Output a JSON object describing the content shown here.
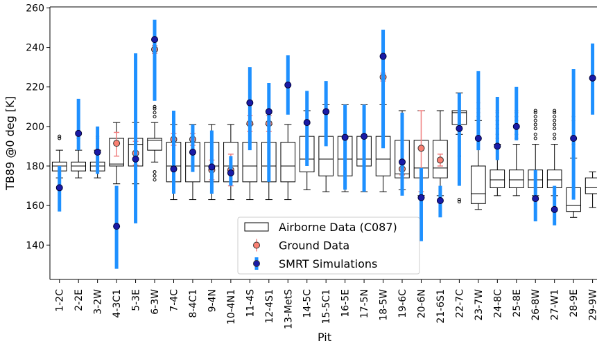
{
  "chart_data": {
    "type": "box",
    "ylabel": "TB89 @0 deg [K]",
    "xlabel": "Pit",
    "categories": [
      "1-2C",
      "2-2E",
      "3-2W",
      "4-3C1",
      "5-3E",
      "6-3W",
      "7-4C",
      "8-4C1",
      "9-4N",
      "10-4N1",
      "11-4S",
      "12-4S1",
      "13-MetS",
      "14-5C",
      "15-5C1",
      "16-5E",
      "17-5N",
      "18-5W",
      "19-6C",
      "20-6N",
      "21-6S1",
      "22-7C",
      "23-7W",
      "24-8C",
      "25-8E",
      "26-8W",
      "27-W1",
      "28-9E",
      "29-9W"
    ],
    "ylim": [
      122.6,
      260.5
    ],
    "yticks": [
      140,
      160,
      180,
      200,
      220,
      240,
      260
    ],
    "legend": "lower center",
    "series": [
      {
        "name": "Airborne Data (C087)",
        "type": "box",
        "color": "#000000",
        "boxes": [
          {
            "whislo": 174,
            "q1": 177.5,
            "med": 180,
            "q3": 182,
            "whishi": 188,
            "fliers": [
              194,
              195
            ]
          },
          {
            "whislo": 174,
            "q1": 177.5,
            "med": 180,
            "q3": 182,
            "whishi": 188,
            "fliers": [
              194,
              195
            ]
          },
          {
            "whislo": 174,
            "q1": 177.5,
            "med": 180,
            "q3": 182,
            "whishi": 188,
            "fliers": [
              194,
              195
            ]
          },
          {
            "whislo": 171,
            "q1": 180,
            "med": 181,
            "q3": 194,
            "whishi": 202,
            "fliers": []
          },
          {
            "whislo": 171,
            "q1": 180,
            "med": 191,
            "q3": 194,
            "whishi": 202,
            "fliers": []
          },
          {
            "whislo": 182,
            "q1": 188,
            "med": 193,
            "q3": 194,
            "whishi": 202,
            "fliers": [
              173,
              175,
              177,
              205,
              207,
              209,
              210
            ]
          },
          {
            "whislo": 163,
            "q1": 172,
            "med": 180,
            "q3": 192,
            "whishi": 201,
            "fliers": []
          },
          {
            "whislo": 163,
            "q1": 172,
            "med": 180,
            "q3": 192,
            "whishi": 201,
            "fliers": []
          },
          {
            "whislo": 163,
            "q1": 172,
            "med": 180,
            "q3": 192,
            "whishi": 201,
            "fliers": []
          },
          {
            "whislo": 163,
            "q1": 172,
            "med": 180,
            "q3": 192,
            "whishi": 201,
            "fliers": []
          },
          {
            "whislo": 163,
            "q1": 172,
            "med": 180,
            "q3": 192,
            "whishi": 201,
            "fliers": []
          },
          {
            "whislo": 163,
            "q1": 172,
            "med": 180,
            "q3": 192,
            "whishi": 201,
            "fliers": []
          },
          {
            "whislo": 163,
            "q1": 172,
            "med": 180,
            "q3": 192,
            "whishi": 201,
            "fliers": []
          },
          {
            "whislo": 168,
            "q1": 177,
            "med": 183.5,
            "q3": 195,
            "whishi": 208,
            "fliers": []
          },
          {
            "whislo": 167,
            "q1": 175,
            "med": 183.5,
            "q3": 195,
            "whishi": 211,
            "fliers": []
          },
          {
            "whislo": 167,
            "q1": 175,
            "med": 183.5,
            "q3": 195,
            "whishi": 211,
            "fliers": []
          },
          {
            "whislo": 167,
            "q1": 180,
            "med": 183.5,
            "q3": 195,
            "whishi": 211,
            "fliers": []
          },
          {
            "whislo": 167,
            "q1": 175,
            "med": 183.5,
            "q3": 195,
            "whishi": 211,
            "fliers": []
          },
          {
            "whislo": 168,
            "q1": 174,
            "med": 176,
            "q3": 193,
            "whishi": 208,
            "fliers": []
          },
          {
            "whislo": 165,
            "q1": 174,
            "med": 179,
            "q3": 193,
            "whishi": 208,
            "fliers": []
          },
          {
            "whislo": 165,
            "q1": 174,
            "med": 179,
            "q3": 193,
            "whishi": 208,
            "fliers": []
          },
          {
            "whislo": 196,
            "q1": 201,
            "med": 207,
            "q3": 208,
            "whishi": 217,
            "fliers": [
              162,
              163,
              185
            ]
          },
          {
            "whislo": 158,
            "q1": 161,
            "med": 166,
            "q3": 180,
            "whishi": 203,
            "fliers": [
              205,
              207,
              209,
              212
            ]
          },
          {
            "whislo": 165,
            "q1": 169,
            "med": 173,
            "q3": 178,
            "whishi": 191,
            "fliers": [
              194,
              196,
              199,
              201,
              203,
              205,
              207,
              208
            ]
          },
          {
            "whislo": 165,
            "q1": 169,
            "med": 173,
            "q3": 178,
            "whishi": 191,
            "fliers": [
              194,
              196,
              199,
              201,
              203,
              205,
              207,
              208
            ]
          },
          {
            "whislo": 165,
            "q1": 169,
            "med": 173,
            "q3": 178,
            "whishi": 191,
            "fliers": [
              194,
              196,
              199,
              201,
              203,
              205,
              207,
              208
            ]
          },
          {
            "whislo": 165,
            "q1": 169,
            "med": 173,
            "q3": 178,
            "whishi": 191,
            "fliers": [
              194,
              196,
              199,
              201,
              203,
              205,
              207,
              208
            ]
          },
          {
            "whislo": 154,
            "q1": 157,
            "med": 160,
            "q3": 169,
            "whishi": 184,
            "fliers": [
              191,
              193,
              195,
              203,
              205
            ]
          },
          {
            "whislo": 159,
            "q1": 166,
            "med": 169,
            "q3": 174,
            "whishi": 177,
            "fliers": []
          }
        ]
      },
      {
        "name": "Ground Data",
        "type": "errorbar",
        "color": "#fa8072",
        "errcolor": "#f08080",
        "values": [
          null,
          null,
          null,
          191.5,
          186.5,
          239,
          193.5,
          193.5,
          178,
          178,
          201.5,
          201.5,
          null,
          null,
          null,
          null,
          null,
          225,
          178.5,
          189,
          183,
          null,
          null,
          null,
          null,
          null,
          null,
          null,
          null
        ],
        "low": [
          null,
          null,
          null,
          185,
          180.5,
          237,
          190.5,
          190.5,
          173,
          170,
          197.5,
          197.5,
          null,
          null,
          null,
          null,
          null,
          223,
          175.5,
          167,
          180,
          null,
          null,
          null,
          null,
          null,
          null,
          null,
          null
        ],
        "high": [
          null,
          null,
          null,
          197,
          192.5,
          241,
          196.5,
          196.5,
          183,
          186,
          205.5,
          205.5,
          null,
          null,
          null,
          null,
          null,
          227,
          181.5,
          208,
          186,
          null,
          null,
          null,
          null,
          null,
          null,
          null,
          null
        ]
      },
      {
        "name": "SMRT Simulations",
        "type": "errorbar",
        "color": "#1a1aa6",
        "errcolor": "#1e90ff",
        "values": [
          169,
          196.5,
          187,
          149.5,
          183.5,
          244,
          178.5,
          187,
          179.5,
          176.5,
          212,
          207.5,
          221,
          202,
          207.5,
          194.5,
          195,
          235.5,
          182,
          164,
          162.5,
          199,
          194,
          190,
          200,
          163.5,
          158,
          194,
          224.5
        ],
        "low": [
          157,
          188,
          176,
          128,
          151,
          213,
          166,
          177,
          166,
          170,
          188,
          172,
          206,
          180,
          190,
          168,
          167,
          189,
          165,
          142,
          154,
          170,
          188,
          183,
          193,
          152,
          150,
          163,
          206
        ],
        "high": [
          180,
          214,
          200,
          170,
          237,
          254,
          208,
          201,
          198,
          185,
          230,
          222,
          236,
          218,
          223,
          211,
          211,
          249,
          207,
          179,
          170,
          217,
          228,
          215,
          220,
          178,
          170,
          229,
          242
        ]
      }
    ]
  }
}
